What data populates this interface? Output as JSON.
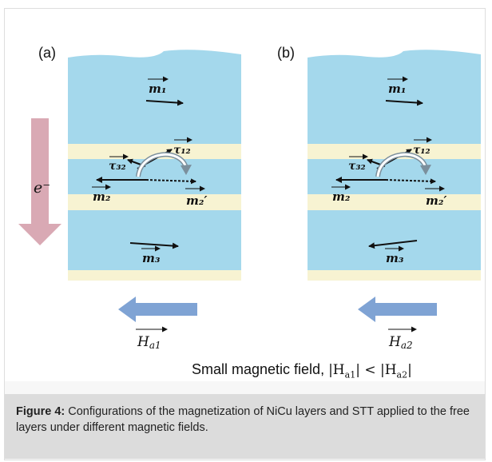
{
  "panels": [
    {
      "label": "(a)",
      "m1": "m₁",
      "m2": "m₂",
      "m2p": "m₂′",
      "m3": "m₃",
      "tau12": "τ₁₂",
      "tau32": "τ₃₂",
      "field": "H",
      "field_sub": "a1"
    },
    {
      "label": "(b)",
      "m1": "m₁",
      "m2": "m₂",
      "m2p": "m₂′",
      "m3": "m₃",
      "tau12": "τ₁₂",
      "tau32": "τ₃₂",
      "field": "H",
      "field_sub": "a2"
    }
  ],
  "electron_label": "e⁻",
  "field_caption": {
    "text": "Small magnetic field, ",
    "math": "|H",
    "sub1": "a1",
    "mid": "| < |H",
    "sub2": "a2",
    "end": "|"
  },
  "caption": {
    "prefix": "Figure 4:",
    "text": " Configurations of the magnetization of NiCu layers and STT applied to the free layers under different magnetic fields."
  },
  "colors": {
    "ferro_layer": "#a4d8ec",
    "spacer_layer": "#f7f3d2",
    "electron_arrow": "#d9a9b4",
    "field_arrow": "#7fa3d4",
    "caption_bg": "#dcdcdc"
  }
}
